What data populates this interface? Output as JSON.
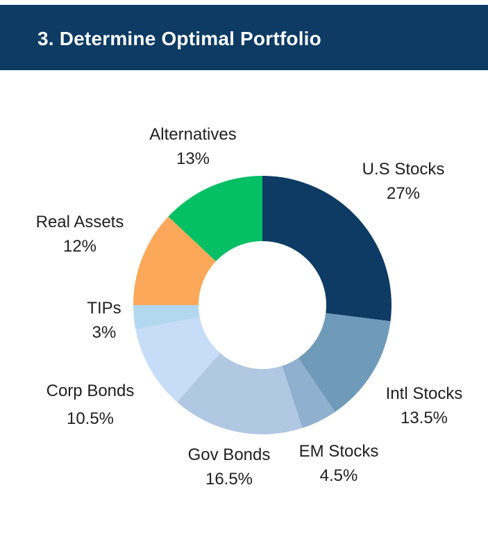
{
  "header": {
    "title": "3. Determine Optimal Portfolio"
  },
  "chart_data": {
    "type": "pie",
    "donut": true,
    "categories": [
      "U.S Stocks",
      "Intl Stocks",
      "EM Stocks",
      "Gov Bonds",
      "Corp Bonds",
      "TIPs",
      "Real Assets",
      "Alternatives"
    ],
    "values": [
      27,
      13.5,
      4.5,
      16.5,
      10.5,
      3,
      12,
      13
    ],
    "value_labels": [
      "27%",
      "13.5%",
      "4.5%",
      "16.5%",
      "10.5%",
      "3%",
      "12%",
      "13%"
    ],
    "colors": [
      "#0d3b63",
      "#6f9ab9",
      "#8fb0cf",
      "#b1c8e2",
      "#c7dcf6",
      "#b1d8ef",
      "#fba85a",
      "#04bf63"
    ],
    "legend": "none",
    "start": "top, clockwise"
  }
}
